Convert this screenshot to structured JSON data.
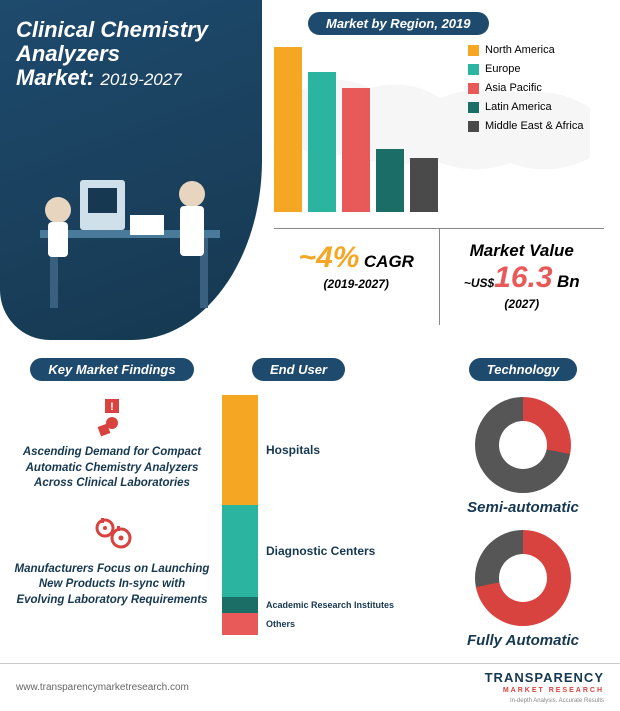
{
  "hero": {
    "title_l1": "Clinical Chemistry",
    "title_l2": "Analyzers",
    "title_l3": "Market:",
    "years": "2019-2027"
  },
  "region": {
    "header": "Market by Region, 2019",
    "bars": [
      {
        "label": "North America",
        "value": 100,
        "color": "#f5a623"
      },
      {
        "label": "Europe",
        "value": 85,
        "color": "#2bb5a0"
      },
      {
        "label": "Asia Pacific",
        "value": 75,
        "color": "#e85a5a"
      },
      {
        "label": "Latin America",
        "value": 38,
        "color": "#1a6e66"
      },
      {
        "label": "Middle East & Africa",
        "value": 33,
        "color": "#4a4a4a"
      }
    ]
  },
  "stats": {
    "cagr_prefix": "~",
    "cagr_value": "4%",
    "cagr_label": "CAGR",
    "cagr_period": "(2019-2027)",
    "cagr_color": "#f5a623",
    "mv_label": "Market Value",
    "mv_prefix": "~US$",
    "mv_value": "16.3",
    "mv_unit": "Bn",
    "mv_year": "(2027)",
    "mv_color": "#e85a5a"
  },
  "findings": {
    "header": "Key Market Findings",
    "items": [
      {
        "icon_color": "#d9433f",
        "text": "Ascending Demand for Compact Automatic Chemistry Analyzers Across Clinical Laboratories"
      },
      {
        "icon_color": "#d9433f",
        "text": "Manufacturers Focus on Launching New Products In-sync with Evolving Laboratory Requirements"
      }
    ]
  },
  "enduser": {
    "header": "End User",
    "segments": [
      {
        "label": "Hospitals",
        "value": 46,
        "color": "#f5a623"
      },
      {
        "label": "Diagnostic Centers",
        "value": 38,
        "color": "#2bb5a0"
      },
      {
        "label": "Academic Research Institutes",
        "value": 7,
        "color": "#1a6e66"
      },
      {
        "label": "Others",
        "value": 9,
        "color": "#e85a5a"
      }
    ]
  },
  "technology": {
    "header": "Technology",
    "items": [
      {
        "label": "Semi-automatic",
        "pct": 28,
        "fg": "#d9433f",
        "bg": "#565656"
      },
      {
        "label": "Fully Automatic",
        "pct": 72,
        "fg": "#d9433f",
        "bg": "#565656"
      }
    ]
  },
  "footer": {
    "url": "www.transparencymarketresearch.com",
    "logo_main": "TRANSPARENCY",
    "logo_sub": "MARKET RESEARCH",
    "logo_tag": "In-depth Analysis. Accurate Results"
  },
  "colors": {
    "navy": "#1e4a6d",
    "text": "#163850"
  }
}
